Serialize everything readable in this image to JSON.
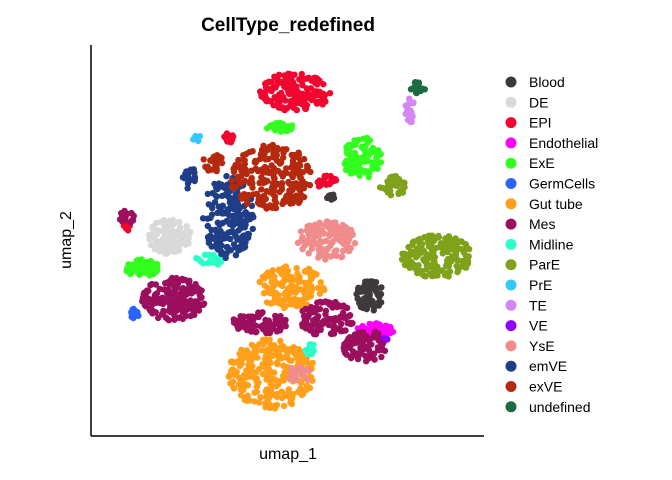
{
  "chart_data": {
    "type": "scatter",
    "title": "CellType_redefined",
    "xlabel": "umap_1",
    "ylabel": "umap_2",
    "xlim": [
      0,
      10
    ],
    "ylim": [
      0,
      10
    ],
    "axis_ticks": false,
    "grid": false,
    "legend_position": "right",
    "series": [
      {
        "name": "Blood",
        "color": "#3e3a3c",
        "clusters": [
          {
            "cx": 7.1,
            "cy": 3.6,
            "rx": 0.35,
            "ry": 0.4,
            "n": 70
          },
          {
            "cx": 6.1,
            "cy": 6.1,
            "rx": 0.1,
            "ry": 0.1,
            "n": 8
          }
        ]
      },
      {
        "name": "DE",
        "color": "#d9d9d9",
        "clusters": [
          {
            "cx": 2.0,
            "cy": 5.1,
            "rx": 0.55,
            "ry": 0.45,
            "n": 120
          }
        ]
      },
      {
        "name": "EPI",
        "color": "#f0062e",
        "clusters": [
          {
            "cx": 5.2,
            "cy": 8.8,
            "rx": 0.9,
            "ry": 0.5,
            "n": 160
          },
          {
            "cx": 6.0,
            "cy": 6.5,
            "rx": 0.25,
            "ry": 0.2,
            "n": 25
          },
          {
            "cx": 0.95,
            "cy": 5.45,
            "rx": 0.15,
            "ry": 0.2,
            "n": 12
          },
          {
            "cx": 3.5,
            "cy": 7.6,
            "rx": 0.15,
            "ry": 0.15,
            "n": 12
          }
        ]
      },
      {
        "name": "Endothelial",
        "color": "#ff00ff",
        "clusters": [
          {
            "cx": 7.2,
            "cy": 2.7,
            "rx": 0.5,
            "ry": 0.2,
            "n": 55
          }
        ]
      },
      {
        "name": "ExE",
        "color": "#33ff1f",
        "clusters": [
          {
            "cx": 6.9,
            "cy": 7.1,
            "rx": 0.5,
            "ry": 0.55,
            "n": 90
          },
          {
            "cx": 1.3,
            "cy": 4.3,
            "rx": 0.45,
            "ry": 0.22,
            "n": 70
          },
          {
            "cx": 4.8,
            "cy": 7.9,
            "rx": 0.35,
            "ry": 0.12,
            "n": 30
          }
        ]
      },
      {
        "name": "GermCells",
        "color": "#2a63ff",
        "clusters": [
          {
            "cx": 1.1,
            "cy": 3.1,
            "rx": 0.12,
            "ry": 0.15,
            "n": 14
          }
        ]
      },
      {
        "name": "Gut tube",
        "color": "#ff9f1a",
        "clusters": [
          {
            "cx": 5.1,
            "cy": 3.8,
            "rx": 0.9,
            "ry": 0.55,
            "n": 140
          },
          {
            "cx": 4.6,
            "cy": 1.6,
            "rx": 1.1,
            "ry": 0.9,
            "n": 260
          }
        ]
      },
      {
        "name": "Mes",
        "color": "#9b0f5e",
        "clusters": [
          {
            "cx": 2.1,
            "cy": 3.5,
            "rx": 0.8,
            "ry": 0.55,
            "n": 150
          },
          {
            "cx": 4.3,
            "cy": 2.9,
            "rx": 0.7,
            "ry": 0.3,
            "n": 90
          },
          {
            "cx": 6.0,
            "cy": 3.0,
            "rx": 0.7,
            "ry": 0.45,
            "n": 110
          },
          {
            "cx": 7.0,
            "cy": 2.3,
            "rx": 0.6,
            "ry": 0.4,
            "n": 80
          },
          {
            "cx": 0.9,
            "cy": 5.6,
            "rx": 0.2,
            "ry": 0.2,
            "n": 16
          }
        ]
      },
      {
        "name": "Midline",
        "color": "#2dffc8",
        "clusters": [
          {
            "cx": 3.0,
            "cy": 4.5,
            "rx": 0.35,
            "ry": 0.15,
            "n": 28
          },
          {
            "cx": 5.6,
            "cy": 2.2,
            "rx": 0.15,
            "ry": 0.15,
            "n": 12
          }
        ]
      },
      {
        "name": "ParE",
        "color": "#7fa21a",
        "clusters": [
          {
            "cx": 8.8,
            "cy": 4.6,
            "rx": 0.9,
            "ry": 0.55,
            "n": 170
          },
          {
            "cx": 7.7,
            "cy": 6.4,
            "rx": 0.35,
            "ry": 0.25,
            "n": 35
          }
        ]
      },
      {
        "name": "PrE",
        "color": "#35c8ff",
        "clusters": [
          {
            "cx": 2.7,
            "cy": 7.6,
            "rx": 0.1,
            "ry": 0.1,
            "n": 6
          }
        ]
      },
      {
        "name": "TE",
        "color": "#d586f5",
        "clusters": [
          {
            "cx": 8.1,
            "cy": 8.3,
            "rx": 0.15,
            "ry": 0.35,
            "n": 18
          }
        ]
      },
      {
        "name": "VE",
        "color": "#9000ff",
        "clusters": [
          {
            "cx": 7.5,
            "cy": 2.5,
            "rx": 0.05,
            "ry": 0.05,
            "n": 3
          }
        ]
      },
      {
        "name": "YsE",
        "color": "#f08c8c",
        "clusters": [
          {
            "cx": 6.0,
            "cy": 5.0,
            "rx": 0.75,
            "ry": 0.5,
            "n": 130
          },
          {
            "cx": 5.3,
            "cy": 1.6,
            "rx": 0.3,
            "ry": 0.25,
            "n": 22
          }
        ]
      },
      {
        "name": "emVE",
        "color": "#1f3e87",
        "clusters": [
          {
            "cx": 3.5,
            "cy": 5.6,
            "rx": 0.65,
            "ry": 1.05,
            "n": 190
          },
          {
            "cx": 2.5,
            "cy": 6.6,
            "rx": 0.2,
            "ry": 0.3,
            "n": 18
          }
        ]
      },
      {
        "name": "exVE",
        "color": "#b5290f",
        "clusters": [
          {
            "cx": 4.6,
            "cy": 6.6,
            "rx": 1.05,
            "ry": 0.85,
            "n": 230
          },
          {
            "cx": 3.1,
            "cy": 7.0,
            "rx": 0.25,
            "ry": 0.25,
            "n": 20
          }
        ]
      },
      {
        "name": "undefined",
        "color": "#1d6b43",
        "clusters": [
          {
            "cx": 8.3,
            "cy": 8.9,
            "rx": 0.2,
            "ry": 0.2,
            "n": 18
          }
        ]
      }
    ]
  }
}
